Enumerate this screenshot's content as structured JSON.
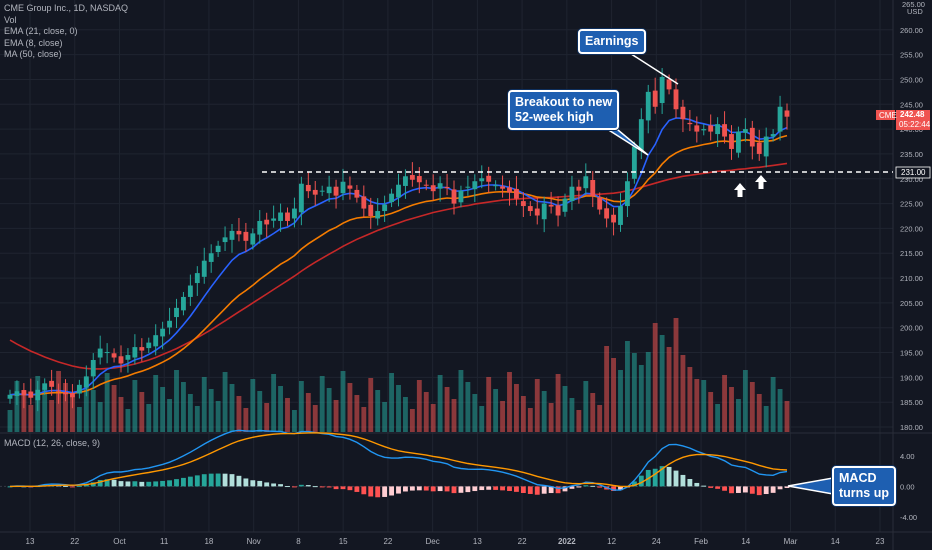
{
  "legend": {
    "symbol": "CME Group Inc., 1D, NASDAQ",
    "vol": "Vol",
    "ema21": "EMA (21, close, 0)",
    "ema8": "EMA (8, close)",
    "ma50": "MA (50, close)",
    "macd": "MACD (12, 26, close, 9)"
  },
  "annotations": {
    "earnings": "Earnings",
    "breakout_line1": "Breakout to new",
    "breakout_line2": "52-week high",
    "macd_line1": "MACD",
    "macd_line2": "turns up"
  },
  "price_tags": {
    "ticker": "CME",
    "last": "242.48",
    "countdown": "05:22:44",
    "level": "231.00"
  },
  "colors": {
    "up": "#26a69a",
    "down": "#ef5350",
    "ema8": "#2962ff",
    "ema21": "#f57c00",
    "ma50": "#c62828",
    "macd": "#2196f3",
    "signal": "#ff9800",
    "callout": "#1e5fb1",
    "background": "#131722"
  },
  "chart_data": {
    "type": "candlestick",
    "y_axis": {
      "unit": "USD",
      "top_label": "265.00",
      "ticks": [
        "260.00",
        "255.00",
        "250.00",
        "245.00",
        "240.00",
        "235.00",
        "230.00",
        "225.00",
        "220.00",
        "215.00",
        "210.00",
        "205.00",
        "200.00",
        "195.00",
        "190.00",
        "185.00",
        "180.00"
      ],
      "ylim": [
        179,
        266
      ]
    },
    "macd_axis": {
      "ticks": [
        "4.00",
        "0.00",
        "-4.00"
      ],
      "ylim": [
        -6,
        6.5
      ]
    },
    "x_axis": {
      "labels": [
        "13",
        "22",
        "Oct",
        "11",
        "18",
        "Nov",
        "8",
        "15",
        "22",
        "Dec",
        "13",
        "22",
        "2022",
        "12",
        "24",
        "Feb",
        "14",
        "Mar",
        "14",
        "23"
      ]
    },
    "resistance_level": 231.0,
    "close": [
      186.5,
      187.2,
      186.4,
      185.9,
      187.5,
      188.8,
      188.1,
      187.3,
      186.6,
      186.0,
      188.5,
      190.2,
      193.5,
      195.8,
      195.1,
      194.0,
      192.8,
      194.5,
      196.1,
      195.4,
      197.0,
      198.5,
      199.8,
      201.4,
      204.0,
      206.2,
      208.5,
      211.0,
      213.5,
      215.0,
      216.5,
      218.2,
      219.5,
      218.8,
      217.5,
      219.0,
      221.5,
      220.8,
      222.0,
      223.2,
      221.5,
      224.0,
      229.0,
      227.5,
      226.8,
      227.6,
      228.4,
      226.6,
      229.4,
      228.0,
      226.2,
      224.0,
      222.5,
      223.5,
      224.8,
      227.0,
      228.8,
      230.5,
      229.8,
      229.3,
      228.7,
      227.5,
      229.1,
      228.1,
      225.0,
      227.6,
      228.4,
      229.5,
      230.1,
      229.4,
      228.7,
      228.0,
      227.2,
      226.0,
      224.5,
      223.5,
      222.6,
      225.0,
      224.4,
      222.6,
      226.0,
      228.4,
      227.6,
      230.5,
      226.5,
      223.8,
      222.0,
      221.2,
      224.5,
      229.5,
      236.5,
      242.0,
      247.5,
      244.5,
      250.5,
      248.0,
      244.0,
      242.0,
      241.0,
      239.5,
      240.0,
      239.5,
      241.0,
      238.5,
      236.0,
      239.5,
      240.0,
      236.5,
      235.0,
      238.5,
      239.0,
      244.5,
      242.5
    ],
    "ma50_values": [
      197.5,
      196.7,
      196.0,
      195.3,
      194.7,
      194.1,
      193.6,
      193.1,
      192.7,
      192.3,
      192.0,
      191.8,
      191.7,
      191.7,
      191.8,
      191.9,
      192.1,
      192.4,
      192.7,
      193.1,
      193.5,
      194.0,
      194.6,
      195.2,
      195.8,
      196.5,
      197.2,
      198.0,
      198.8,
      199.6,
      200.5,
      201.4,
      202.3,
      203.2,
      204.1,
      205.0,
      205.9,
      206.8,
      207.7,
      208.6,
      209.5,
      210.4,
      211.4,
      212.3,
      213.2,
      214.0,
      214.8,
      215.6,
      216.4,
      217.1,
      217.8,
      218.4,
      219.0,
      219.6,
      220.1,
      220.6,
      221.1,
      221.6,
      222.0,
      222.4,
      222.8,
      223.2,
      223.5,
      223.8,
      224.1,
      224.4,
      224.6,
      224.9,
      225.1,
      225.3,
      225.5,
      225.7,
      225.8,
      225.9,
      226.0,
      226.1,
      226.1,
      226.2,
      226.2,
      226.3,
      226.4,
      226.5,
      226.6,
      226.7,
      226.8,
      226.9,
      227.0,
      227.1,
      227.3,
      227.6,
      227.9,
      228.3,
      228.7,
      229.1,
      229.5,
      229.9,
      230.2,
      230.5,
      230.7,
      230.9,
      231.1,
      231.3,
      231.5,
      231.6,
      231.7,
      231.9,
      232.0,
      232.2,
      232.3,
      232.5,
      232.7,
      232.9,
      233.1
    ]
  }
}
